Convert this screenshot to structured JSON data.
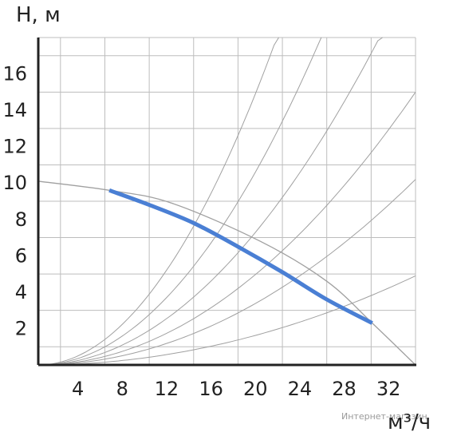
{
  "chart_data": {
    "type": "line",
    "ylabel": "H, м",
    "xlabel": "м³/ч",
    "xlim": [
      0,
      34
    ],
    "ylim": [
      0,
      18
    ],
    "x_ticks": [
      4,
      8,
      12,
      16,
      20,
      24,
      28,
      32
    ],
    "y_ticks": [
      2,
      4,
      6,
      8,
      10,
      12,
      14,
      16
    ],
    "grid": true,
    "series": [
      {
        "name": "",
        "color": "#4a7fd4",
        "x": [
          6.4,
          10,
          14,
          18,
          22,
          26,
          30.1
        ],
        "y": [
          9.6,
          8.8,
          7.8,
          6.5,
          5.1,
          3.6,
          2.3
        ]
      }
    ],
    "system_curve": {
      "color": "#a0a0a0",
      "x": [
        0,
        6.4,
        12,
        20,
        26,
        30.1,
        34
      ],
      "y": [
        10.1,
        9.6,
        8.9,
        6.8,
        4.6,
        2.3,
        0
      ]
    },
    "parabola_color": "#a0a0a0",
    "parabola_y_at_34": [
      45,
      32,
      22,
      15,
      10.2,
      4.9
    ]
  },
  "watermark": "Интернет-магазин"
}
